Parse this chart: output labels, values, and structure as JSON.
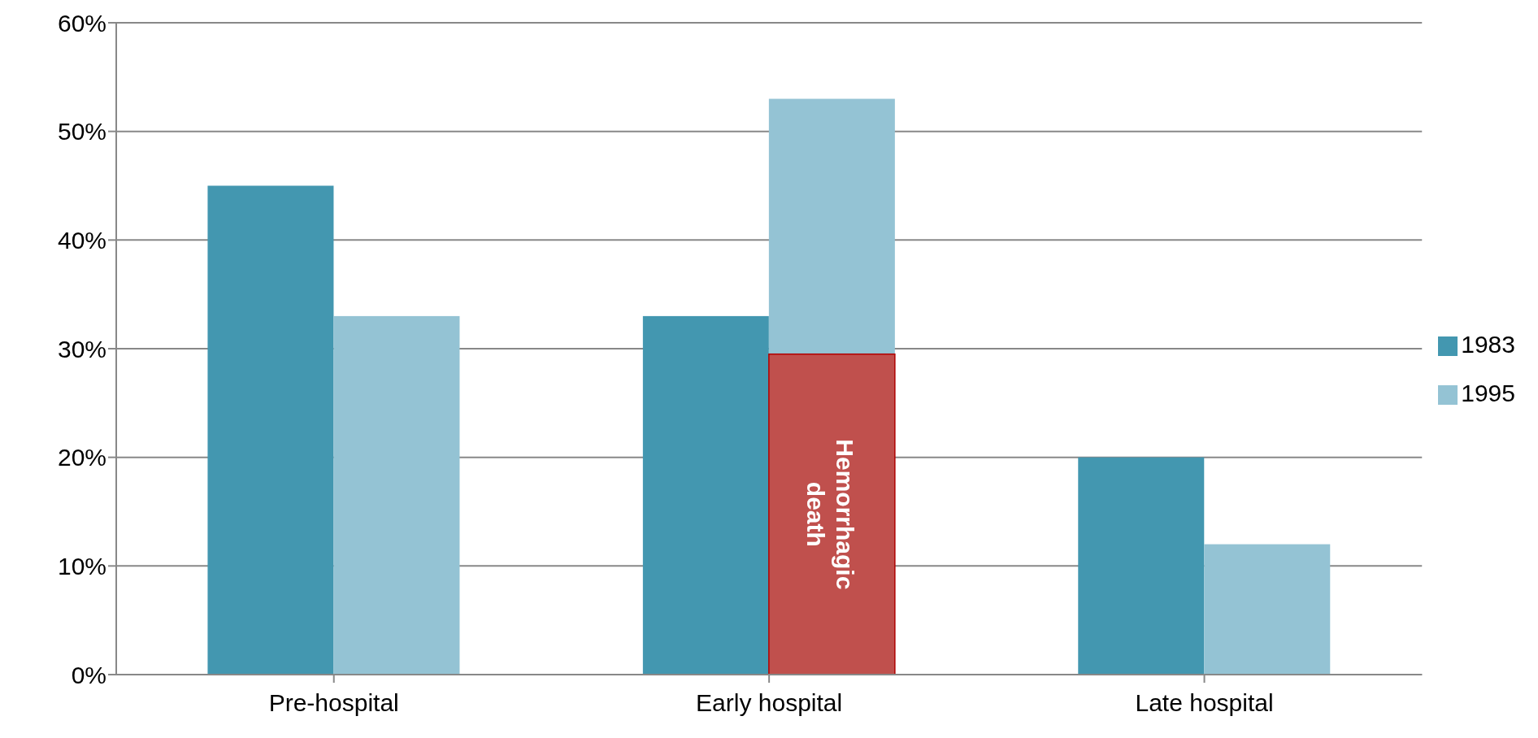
{
  "chart_data": {
    "type": "bar",
    "categories": [
      "Pre-hospital",
      "Early hospital",
      "Late hospital"
    ],
    "series": [
      {
        "name": "1983",
        "color": "#4397b0",
        "values": [
          45,
          33,
          20
        ]
      },
      {
        "name": "1995",
        "color": "#94c3d4",
        "values": [
          33,
          53,
          12
        ]
      },
      {
        "color": "#c0504d",
        "values": [
          null,
          29.5,
          null
        ]
      }
    ],
    "ylim": [
      0,
      60
    ],
    "yticks": [
      {
        "value": 0,
        "label": "0%"
      },
      {
        "value": 10,
        "label": "10%"
      },
      {
        "value": 20,
        "label": "20%"
      },
      {
        "value": 30,
        "label": "30%"
      },
      {
        "value": 40,
        "label": "40%"
      },
      {
        "value": 50,
        "label": "50%"
      },
      {
        "value": 60,
        "label": "60%"
      }
    ],
    "grid": "y",
    "legend": "right",
    "annotations": [
      {
        "text": "Hemorrhagic death",
        "x": "Early hospital",
        "y": 14.75
      }
    ]
  }
}
